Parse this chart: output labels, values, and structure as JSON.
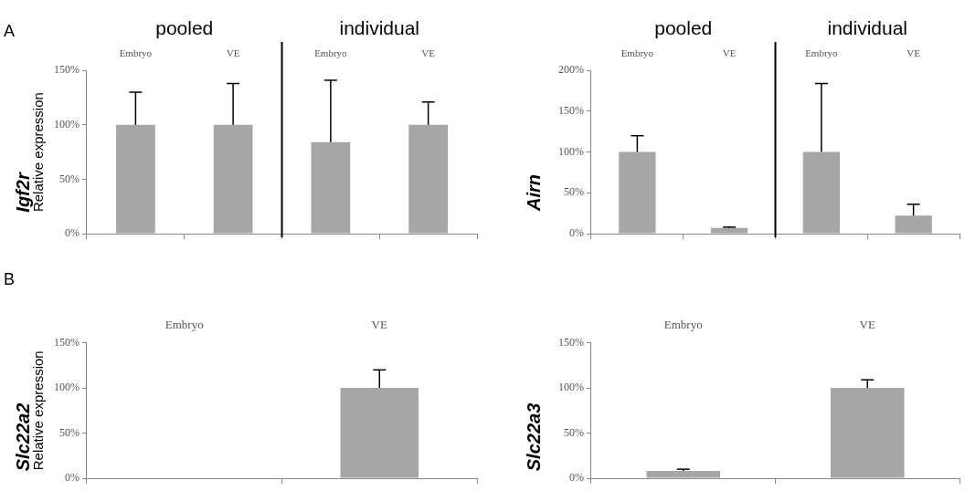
{
  "chart_data": [
    {
      "type": "bar",
      "title": "Igf2r",
      "ylabel": "Relative expression",
      "categories": [
        "Embryo",
        "VE",
        "Embryo",
        "VE"
      ],
      "values": [
        100,
        100,
        84,
        100
      ],
      "errors": [
        [
          100,
          130
        ],
        [
          100,
          138
        ],
        [
          84,
          141
        ],
        [
          100,
          121
        ]
      ],
      "color": "#a6a6a6",
      "ylim": [
        0,
        150
      ],
      "yticks": [
        {
          "value": 0,
          "label": "0%"
        },
        {
          "value": 50,
          "label": "50%"
        },
        {
          "value": 100,
          "label": "100%"
        },
        {
          "value": 150,
          "label": "150%"
        }
      ],
      "grid": false,
      "legend": false,
      "annotations": [
        "A",
        "pooled",
        "individual"
      ]
    },
    {
      "type": "bar",
      "title": "Airn",
      "categories": [
        "Embryo",
        "VE",
        "Embryo",
        "VE"
      ],
      "values": [
        100,
        7,
        100,
        22
      ],
      "errors": [
        [
          100,
          120
        ],
        [
          7,
          8
        ],
        [
          100,
          184
        ],
        [
          22,
          36
        ]
      ],
      "color": "#a6a6a6",
      "ylim": [
        0,
        200
      ],
      "yticks": [
        {
          "value": 0,
          "label": "0%"
        },
        {
          "value": 50,
          "label": "50%"
        },
        {
          "value": 100,
          "label": "100%"
        },
        {
          "value": 150,
          "label": "150%"
        },
        {
          "value": 200,
          "label": "200%"
        }
      ],
      "grid": false,
      "legend": false,
      "annotations": [
        "pooled",
        "individual"
      ]
    },
    {
      "type": "bar",
      "title": "Slc22a2",
      "ylabel": "Relative expression",
      "categories": [
        "Embryo",
        "VE"
      ],
      "values": [
        0,
        100
      ],
      "errors": [
        null,
        [
          100,
          120
        ]
      ],
      "color": "#a6a6a6",
      "ylim": [
        0,
        150
      ],
      "yticks": [
        {
          "value": 0,
          "label": "0%"
        },
        {
          "value": 50,
          "label": "50%"
        },
        {
          "value": 100,
          "label": "100%"
        },
        {
          "value": 150,
          "label": "150%"
        }
      ],
      "grid": false,
      "legend": false,
      "annotations": [
        "B"
      ]
    },
    {
      "type": "bar",
      "title": "Slc22a3",
      "categories": [
        "Embryo",
        "VE"
      ],
      "values": [
        8,
        100
      ],
      "errors": [
        [
          8,
          10
        ],
        [
          100,
          109
        ]
      ],
      "color": "#a6a6a6",
      "ylim": [
        0,
        150
      ],
      "yticks": [
        {
          "value": 0,
          "label": "0%"
        },
        {
          "value": 50,
          "label": "50%"
        },
        {
          "value": 100,
          "label": "100%"
        },
        {
          "value": 150,
          "label": "150%"
        }
      ],
      "grid": false,
      "legend": false
    }
  ]
}
